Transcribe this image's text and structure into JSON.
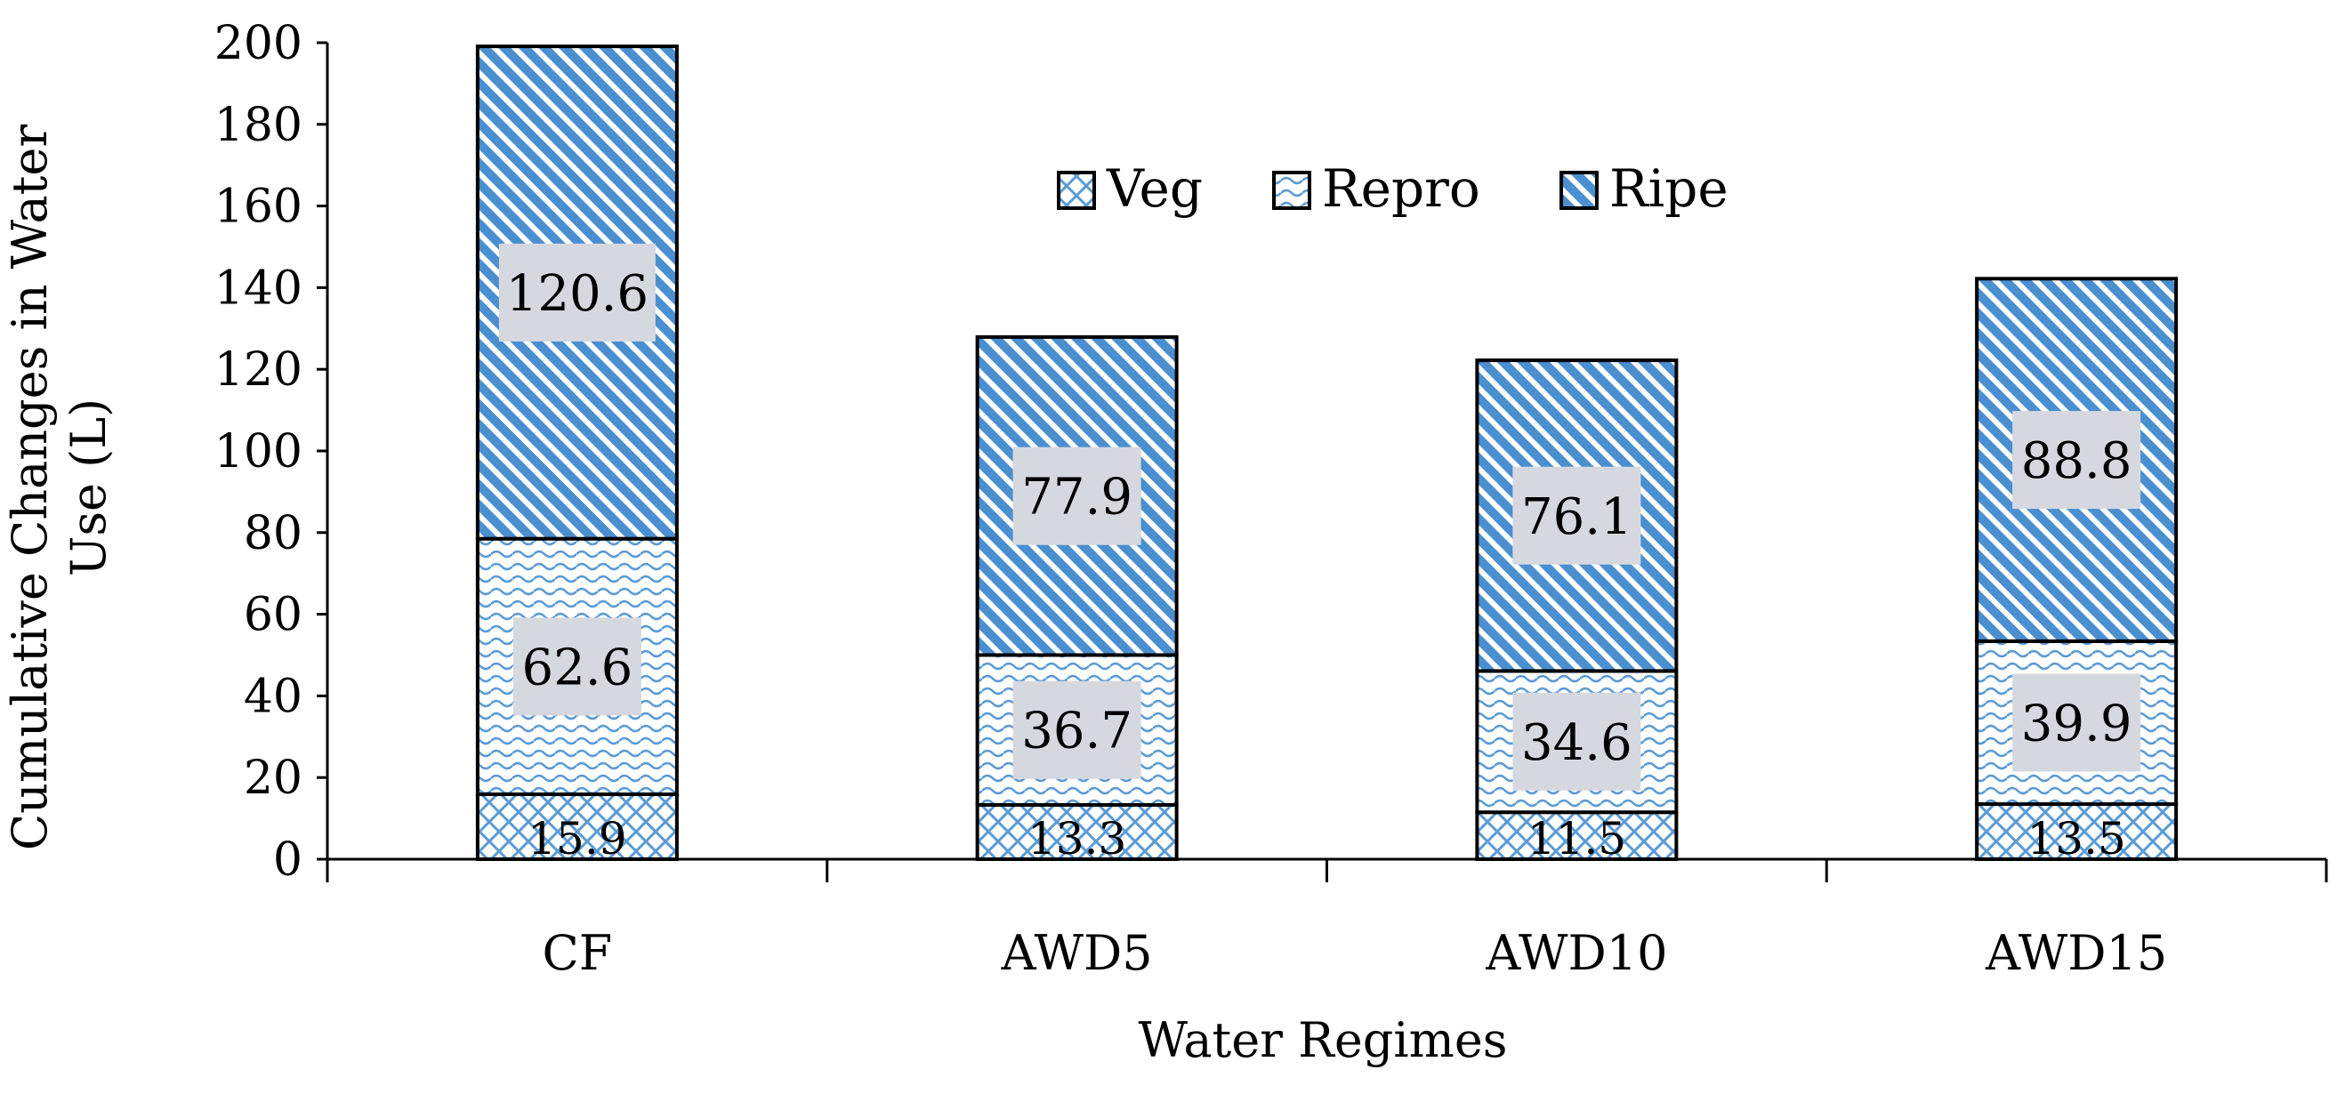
{
  "chart_data": {
    "type": "bar",
    "stacked": true,
    "title": "",
    "xlabel": "Water Regimes",
    "ylabel_lines": [
      "Cumulative Changes in Water",
      "Use  (L)"
    ],
    "ylim": [
      0,
      200
    ],
    "yticks": [
      0,
      20,
      40,
      60,
      80,
      100,
      120,
      140,
      160,
      180,
      200
    ],
    "categories": [
      "CF",
      "AWD5",
      "AWD10",
      "AWD15"
    ],
    "series": [
      {
        "name": "Veg",
        "values": [
          15.9,
          13.3,
          11.5,
          13.5
        ],
        "labels": [
          "15.9",
          "13.3",
          "11.5",
          "13.5"
        ],
        "pattern": "crosshatch",
        "color": "#5b9bd5"
      },
      {
        "name": "Repro",
        "values": [
          62.6,
          36.7,
          34.6,
          39.9
        ],
        "labels": [
          "62.6",
          "36.7",
          "34.6",
          "39.9"
        ],
        "pattern": "wave",
        "color": "#5b9bd5"
      },
      {
        "name": "Ripe",
        "values": [
          120.6,
          77.9,
          76.1,
          88.8
        ],
        "labels": [
          "120.6",
          "77.9",
          "76.1",
          "88.8"
        ],
        "pattern": "diagonal",
        "color": "#4a8fd0"
      }
    ],
    "legend": {
      "position": "top-center",
      "items": [
        "Veg",
        "Repro",
        "Ripe"
      ]
    },
    "label_box_color": "#d6d8e0",
    "grid": false
  }
}
